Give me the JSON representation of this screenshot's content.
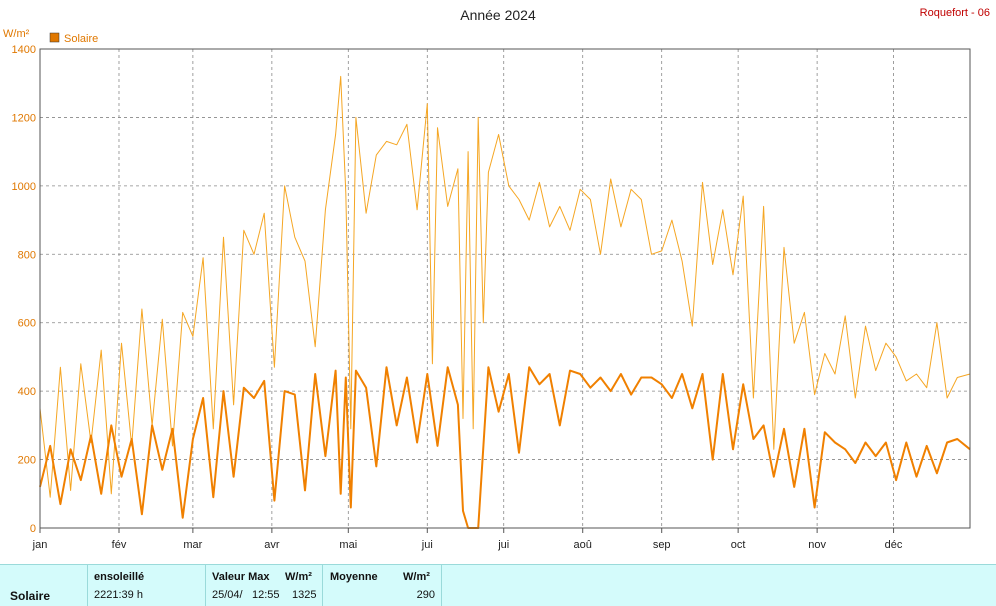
{
  "title": "Année 2024",
  "station": "Roquefort - 06",
  "y_unit": "W/m²",
  "legend": {
    "label": "Solaire",
    "color": "#e07800"
  },
  "colors": {
    "max_line": "#f5a623",
    "mean_line": "#f08000",
    "grid": "#888888"
  },
  "chart_data": {
    "type": "line",
    "title": "Année 2024",
    "ylabel": "W/m²",
    "ylim": [
      0,
      1400
    ],
    "yticks": [
      "0",
      "200",
      "400",
      "600",
      "800",
      "1000",
      "1200",
      "1400"
    ],
    "xlim": [
      1,
      366
    ],
    "x_ticks": [
      {
        "day": 1,
        "label": "jan"
      },
      {
        "day": 32,
        "label": "fév"
      },
      {
        "day": 61,
        "label": "mar"
      },
      {
        "day": 92,
        "label": "avr"
      },
      {
        "day": 122,
        "label": "mai"
      },
      {
        "day": 153,
        "label": "jui"
      },
      {
        "day": 183,
        "label": "jui"
      },
      {
        "day": 214,
        "label": "aoû"
      },
      {
        "day": 245,
        "label": "sep"
      },
      {
        "day": 275,
        "label": "oct"
      },
      {
        "day": 306,
        "label": "nov"
      },
      {
        "day": 336,
        "label": "déc"
      }
    ],
    "grid": true,
    "series": [
      {
        "name": "Solaire max",
        "x": [
          1,
          5,
          9,
          13,
          17,
          21,
          25,
          29,
          33,
          37,
          41,
          45,
          49,
          53,
          57,
          61,
          65,
          69,
          73,
          77,
          81,
          85,
          89,
          93,
          97,
          101,
          105,
          109,
          113,
          117,
          119,
          121,
          123,
          125,
          129,
          133,
          137,
          141,
          145,
          149,
          153,
          155,
          157,
          161,
          165,
          167,
          169,
          171,
          173,
          175,
          177,
          181,
          185,
          189,
          193,
          197,
          201,
          205,
          209,
          213,
          217,
          221,
          225,
          229,
          233,
          237,
          241,
          245,
          249,
          253,
          257,
          261,
          265,
          269,
          273,
          277,
          281,
          285,
          289,
          293,
          297,
          301,
          305,
          309,
          313,
          317,
          321,
          325,
          329,
          333,
          337,
          341,
          345,
          349,
          353,
          357,
          361,
          366
        ],
        "values": [
          350,
          90,
          470,
          110,
          480,
          250,
          520,
          100,
          540,
          240,
          640,
          300,
          610,
          240,
          630,
          560,
          790,
          290,
          850,
          360,
          870,
          800,
          920,
          470,
          1000,
          850,
          780,
          530,
          930,
          1150,
          1320,
          980,
          290,
          1200,
          920,
          1090,
          1130,
          1120,
          1180,
          930,
          1240,
          480,
          1170,
          940,
          1050,
          320,
          1100,
          290,
          1200,
          600,
          1040,
          1150,
          1000,
          960,
          900,
          1010,
          880,
          940,
          870,
          990,
          960,
          800,
          1020,
          880,
          990,
          960,
          800,
          810,
          900,
          780,
          590,
          1010,
          770,
          930,
          740,
          970,
          380,
          940,
          230,
          820,
          540,
          630,
          390,
          510,
          450,
          620,
          380,
          590,
          460,
          540,
          500,
          430,
          450,
          410,
          600,
          380,
          440,
          450
        ]
      },
      {
        "name": "Solaire moyenne",
        "x": [
          1,
          5,
          9,
          13,
          17,
          21,
          25,
          29,
          33,
          37,
          41,
          45,
          49,
          53,
          57,
          61,
          65,
          69,
          73,
          77,
          81,
          85,
          89,
          93,
          97,
          101,
          105,
          109,
          113,
          117,
          119,
          121,
          123,
          125,
          129,
          133,
          137,
          141,
          145,
          149,
          153,
          157,
          161,
          165,
          167,
          169,
          171,
          173,
          177,
          181,
          185,
          189,
          193,
          197,
          201,
          205,
          209,
          213,
          217,
          221,
          225,
          229,
          233,
          237,
          241,
          245,
          249,
          253,
          257,
          261,
          265,
          269,
          273,
          277,
          281,
          285,
          289,
          293,
          297,
          301,
          305,
          309,
          313,
          317,
          321,
          325,
          329,
          333,
          337,
          341,
          345,
          349,
          353,
          357,
          361,
          366
        ],
        "values": [
          120,
          240,
          70,
          230,
          140,
          270,
          100,
          300,
          150,
          260,
          40,
          300,
          170,
          290,
          30,
          260,
          380,
          90,
          400,
          150,
          410,
          380,
          430,
          80,
          400,
          390,
          110,
          450,
          210,
          460,
          100,
          440,
          60,
          460,
          410,
          180,
          470,
          300,
          440,
          250,
          450,
          240,
          470,
          360,
          50,
          0,
          0,
          0,
          470,
          340,
          450,
          220,
          470,
          420,
          450,
          300,
          460,
          450,
          410,
          440,
          400,
          450,
          390,
          440,
          440,
          420,
          380,
          450,
          350,
          450,
          200,
          450,
          230,
          420,
          260,
          300,
          150,
          290,
          120,
          290,
          60,
          280,
          250,
          230,
          190,
          250,
          210,
          250,
          140,
          250,
          150,
          240,
          160,
          250,
          260,
          230
        ]
      }
    ]
  },
  "summary": {
    "row_label": "Solaire",
    "sunshine": {
      "header": "ensoleillé",
      "value": "2221:39 h"
    },
    "max": {
      "header": "Valeur Max",
      "unit": "W/m²",
      "date": "25/04/",
      "time": "12:55",
      "value": "1325"
    },
    "mean": {
      "header": "Moyenne",
      "unit": "W/m²",
      "value": "290"
    }
  }
}
